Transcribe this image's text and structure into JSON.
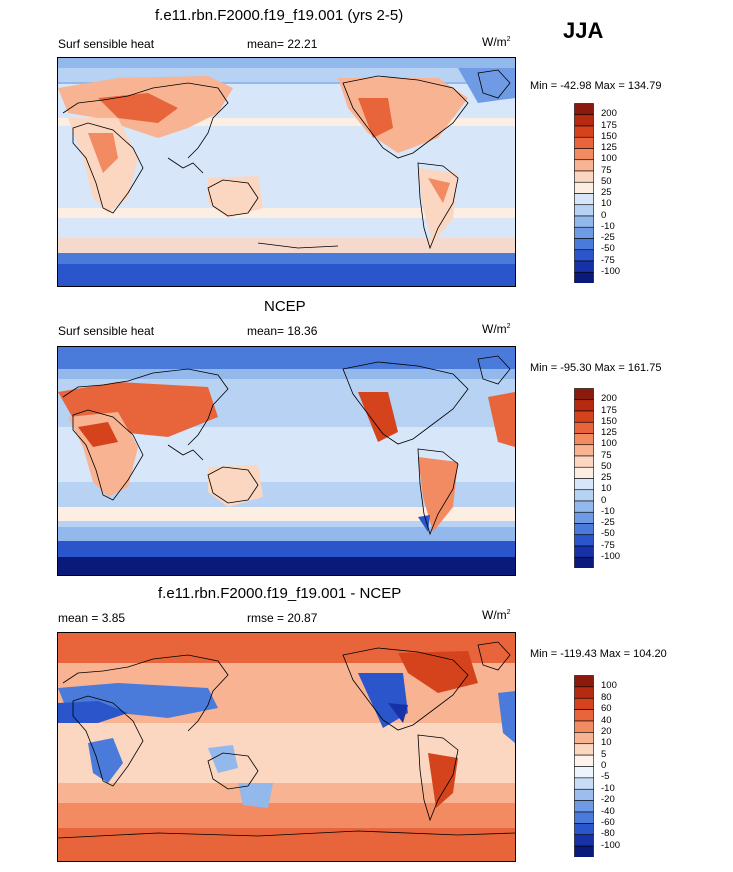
{
  "season": "JJA",
  "panels": [
    {
      "title": "f.e11.rbn.F2000.f19_f19.001 (yrs 2-5)",
      "left_label": "Surf sensible heat",
      "center_label": "mean=  22.21",
      "units": "W/m",
      "units_sup": "2",
      "minmax": "Min = -42.98 Max = 134.79",
      "colorbar": [
        "200",
        "175",
        "150",
        "125",
        "100",
        "75",
        "50",
        "25",
        "10",
        "0",
        "-10",
        "-25",
        "-50",
        "-75",
        "-100"
      ],
      "colors": [
        "#8a1a0c",
        "#b72a12",
        "#d5431c",
        "#e8643a",
        "#f28a62",
        "#f7b392",
        "#fbd6c0",
        "#fdeee3",
        "#d7e6f8",
        "#b7d2f3",
        "#93b8ec",
        "#6f9be4",
        "#4a7bdb",
        "#2a55cb",
        "#1632a6",
        "#0a1a7a"
      ]
    },
    {
      "title": "NCEP",
      "left_label": "Surf sensible heat",
      "center_label": "mean=  18.36",
      "units": "W/m",
      "units_sup": "2",
      "minmax": "Min = -95.30 Max = 161.75",
      "colorbar": [
        "200",
        "175",
        "150",
        "125",
        "100",
        "75",
        "50",
        "25",
        "10",
        "0",
        "-10",
        "-25",
        "-50",
        "-75",
        "-100"
      ],
      "colors": [
        "#8a1a0c",
        "#b72a12",
        "#d5431c",
        "#e8643a",
        "#f28a62",
        "#f7b392",
        "#fbd6c0",
        "#fdeee3",
        "#d7e6f8",
        "#b7d2f3",
        "#93b8ec",
        "#6f9be4",
        "#4a7bdb",
        "#2a55cb",
        "#1632a6",
        "#0a1a7a"
      ]
    },
    {
      "title": "f.e11.rbn.F2000.f19_f19.001 - NCEP",
      "left_label": "mean =   3.85",
      "center_label": "rmse =  20.87",
      "units": "W/m",
      "units_sup": "2",
      "minmax": "Min = -119.43 Max = 104.20",
      "colorbar": [
        "100",
        "80",
        "60",
        "40",
        "20",
        "10",
        "5",
        "0",
        "-5",
        "-10",
        "-20",
        "-40",
        "-60",
        "-80",
        "-100"
      ],
      "colors": [
        "#8a1a0c",
        "#b72a12",
        "#d5431c",
        "#e8643a",
        "#f28a62",
        "#f7b392",
        "#fbd6c0",
        "#fdf3ec",
        "#eef4fc",
        "#c9dcf5",
        "#9cbdee",
        "#6f9be4",
        "#4a7bdb",
        "#2a55cb",
        "#1632a6",
        "#0a1a7a"
      ]
    }
  ],
  "chart_data": [
    {
      "type": "heatmap",
      "title": "f.e11.rbn.F2000.f19_f19.001 (yrs 2-5)",
      "variable": "Surf sensible heat",
      "units": "W/m2",
      "mean": 22.21,
      "min": -42.98,
      "max": 134.79,
      "levels": [
        -100,
        -75,
        -50,
        -25,
        -10,
        0,
        10,
        25,
        50,
        75,
        100,
        125,
        150,
        175,
        200
      ]
    },
    {
      "type": "heatmap",
      "title": "NCEP",
      "variable": "Surf sensible heat",
      "units": "W/m2",
      "mean": 18.36,
      "min": -95.3,
      "max": 161.75,
      "levels": [
        -100,
        -75,
        -50,
        -25,
        -10,
        0,
        10,
        25,
        50,
        75,
        100,
        125,
        150,
        175,
        200
      ]
    },
    {
      "type": "heatmap",
      "title": "f.e11.rbn.F2000.f19_f19.001 - NCEP",
      "units": "W/m2",
      "mean": 3.85,
      "rmse": 20.87,
      "min": -119.43,
      "max": 104.2,
      "levels": [
        -100,
        -80,
        -60,
        -40,
        -20,
        -10,
        -5,
        0,
        5,
        10,
        20,
        40,
        60,
        80,
        100
      ]
    }
  ]
}
